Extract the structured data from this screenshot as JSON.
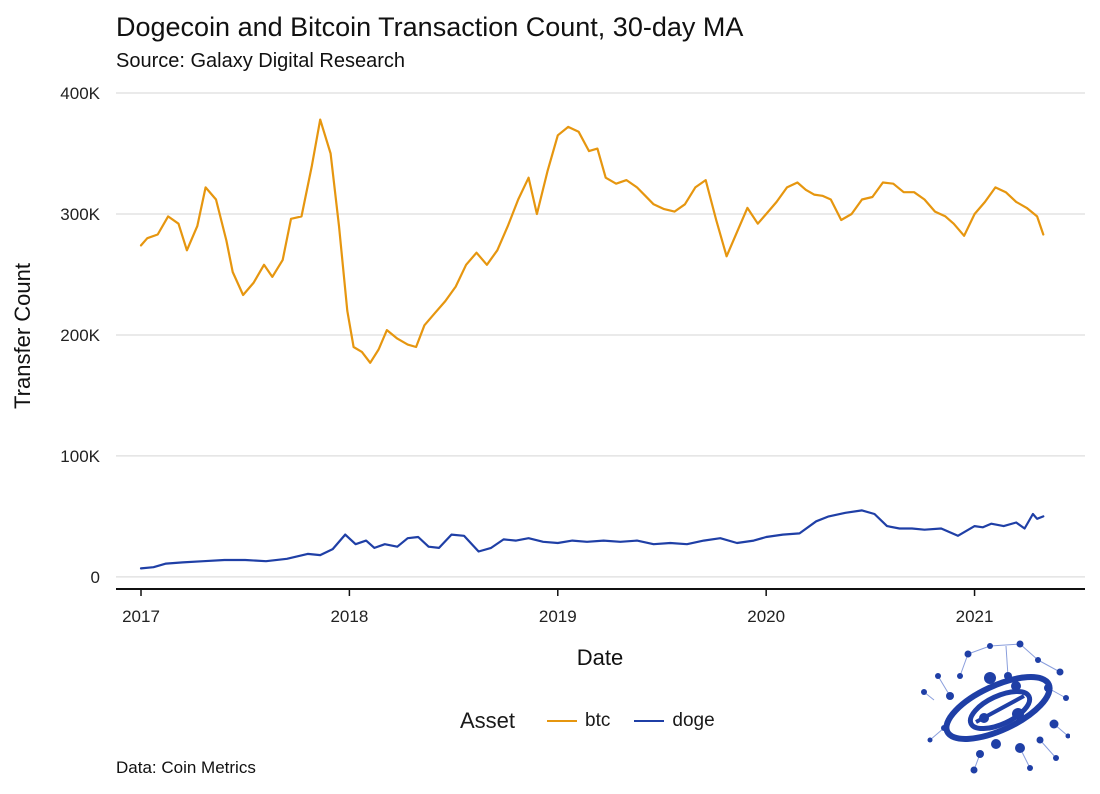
{
  "header": {
    "title": "Dogecoin and Bitcoin Transaction Count, 30-day MA",
    "subtitle": "Source: Galaxy Digital Research"
  },
  "caption": "Data: Coin Metrics",
  "legend": {
    "title": "Asset",
    "items": [
      {
        "label": "btc",
        "color": "#e6960f"
      },
      {
        "label": "doge",
        "color": "#1f3fa6"
      }
    ]
  },
  "logo": {
    "icon": "galaxy-network-logo-icon",
    "color": "#1f3fa6"
  },
  "chart_data": {
    "type": "line",
    "title": "Dogecoin and Bitcoin Transaction Count, 30-day MA",
    "subtitle": "Source: Galaxy Digital Research",
    "xlabel": "Date",
    "ylabel": "Transfer Count",
    "xlim": [
      2016.88,
      2021.53
    ],
    "ylim": [
      -10000,
      400000
    ],
    "x_ticks": [
      {
        "value": 2017,
        "label": "2017"
      },
      {
        "value": 2018,
        "label": "2018"
      },
      {
        "value": 2019,
        "label": "2019"
      },
      {
        "value": 2020,
        "label": "2020"
      },
      {
        "value": 2021,
        "label": "2021"
      }
    ],
    "y_ticks": [
      {
        "value": 0,
        "label": "0"
      },
      {
        "value": 100000,
        "label": "100K"
      },
      {
        "value": 200000,
        "label": "200K"
      },
      {
        "value": 300000,
        "label": "300K"
      },
      {
        "value": 400000,
        "label": "400K"
      }
    ],
    "grid": true,
    "legend_position": "bottom",
    "series": [
      {
        "name": "btc",
        "color": "#e6960f",
        "x": [
          2017.0,
          2017.03,
          2017.08,
          2017.13,
          2017.18,
          2017.22,
          2017.27,
          2017.31,
          2017.36,
          2017.41,
          2017.44,
          2017.49,
          2017.54,
          2017.59,
          2017.63,
          2017.68,
          2017.72,
          2017.77,
          2017.82,
          2017.86,
          2017.91,
          2017.95,
          2017.99,
          2018.02,
          2018.06,
          2018.1,
          2018.14,
          2018.18,
          2018.23,
          2018.28,
          2018.32,
          2018.36,
          2018.41,
          2018.46,
          2018.51,
          2018.56,
          2018.61,
          2018.66,
          2018.71,
          2018.76,
          2018.81,
          2018.86,
          2018.9,
          2018.95,
          2019.0,
          2019.05,
          2019.1,
          2019.15,
          2019.19,
          2019.23,
          2019.28,
          2019.33,
          2019.38,
          2019.42,
          2019.46,
          2019.51,
          2019.56,
          2019.61,
          2019.66,
          2019.71,
          2019.76,
          2019.81,
          2019.86,
          2019.91,
          2019.96,
          2020.0,
          2020.05,
          2020.1,
          2020.15,
          2020.19,
          2020.23,
          2020.27,
          2020.31,
          2020.36,
          2020.41,
          2020.46,
          2020.51,
          2020.56,
          2020.61,
          2020.66,
          2020.71,
          2020.76,
          2020.81,
          2020.86,
          2020.9,
          2020.95,
          2021.0,
          2021.05,
          2021.1,
          2021.15,
          2021.2,
          2021.25,
          2021.3,
          2021.33
        ],
        "values": [
          274000,
          280000,
          283000,
          298000,
          292000,
          270000,
          290000,
          322000,
          312000,
          278000,
          252000,
          233000,
          243000,
          258000,
          248000,
          262000,
          296000,
          298000,
          340000,
          378000,
          350000,
          290000,
          220000,
          190000,
          186000,
          177000,
          188000,
          204000,
          197000,
          192000,
          190000,
          208000,
          218000,
          228000,
          240000,
          258000,
          268000,
          258000,
          270000,
          290000,
          312000,
          330000,
          300000,
          335000,
          365000,
          372000,
          368000,
          352000,
          354000,
          330000,
          325000,
          328000,
          322000,
          315000,
          308000,
          304000,
          302000,
          308000,
          322000,
          328000,
          295000,
          265000,
          285000,
          305000,
          292000,
          300000,
          310000,
          322000,
          326000,
          320000,
          316000,
          315000,
          312000,
          295000,
          300000,
          312000,
          314000,
          326000,
          325000,
          318000,
          318000,
          312000,
          302000,
          298000,
          292000,
          282000,
          300000,
          310000,
          322000,
          318000,
          310000,
          305000,
          298000,
          283000
        ]
      },
      {
        "name": "doge",
        "color": "#1f3fa6",
        "x": [
          2017.0,
          2017.06,
          2017.12,
          2017.2,
          2017.3,
          2017.4,
          2017.5,
          2017.6,
          2017.7,
          2017.8,
          2017.86,
          2017.92,
          2017.98,
          2018.03,
          2018.08,
          2018.12,
          2018.17,
          2018.23,
          2018.28,
          2018.33,
          2018.38,
          2018.43,
          2018.49,
          2018.55,
          2018.62,
          2018.68,
          2018.74,
          2018.8,
          2018.86,
          2018.93,
          2019.0,
          2019.07,
          2019.14,
          2019.22,
          2019.3,
          2019.38,
          2019.46,
          2019.54,
          2019.62,
          2019.7,
          2019.78,
          2019.86,
          2019.94,
          2020.0,
          2020.08,
          2020.16,
          2020.24,
          2020.3,
          2020.38,
          2020.46,
          2020.52,
          2020.58,
          2020.64,
          2020.7,
          2020.76,
          2020.84,
          2020.92,
          2021.0,
          2021.04,
          2021.08,
          2021.14,
          2021.2,
          2021.24,
          2021.28,
          2021.3,
          2021.33
        ],
        "values": [
          7000,
          8000,
          11000,
          12000,
          13000,
          14000,
          14000,
          13000,
          15000,
          19000,
          18000,
          23000,
          35000,
          27000,
          30000,
          24000,
          27000,
          25000,
          32000,
          33000,
          25000,
          24000,
          35000,
          34000,
          21000,
          24000,
          31000,
          30000,
          32000,
          29000,
          28000,
          30000,
          29000,
          30000,
          29000,
          30000,
          27000,
          28000,
          27000,
          30000,
          32000,
          28000,
          30000,
          33000,
          35000,
          36000,
          46000,
          50000,
          53000,
          55000,
          52000,
          42000,
          40000,
          40000,
          39000,
          40000,
          34000,
          42000,
          41000,
          44000,
          42000,
          45000,
          40000,
          52000,
          48000,
          50000
        ]
      }
    ]
  }
}
